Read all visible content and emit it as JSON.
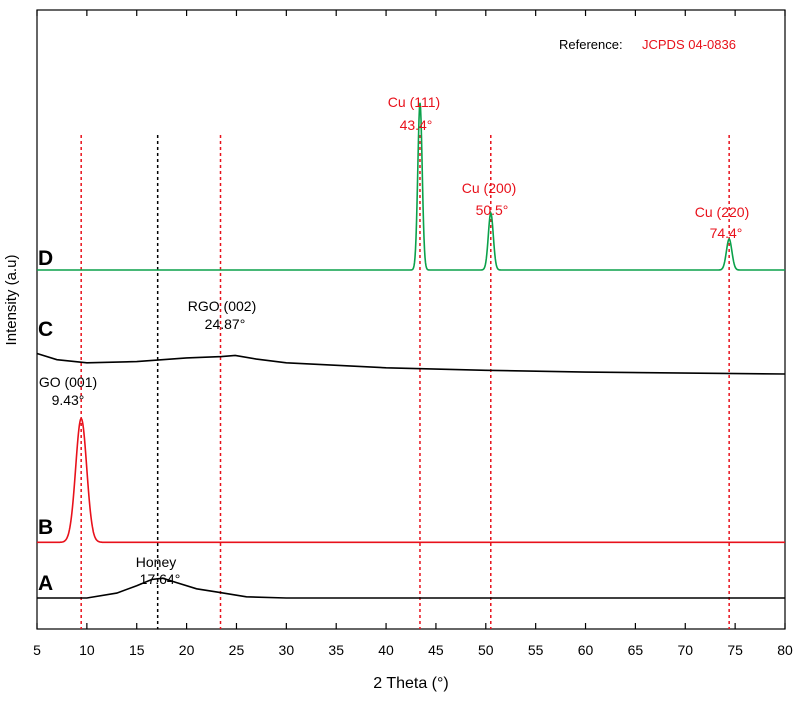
{
  "chart_data": {
    "type": "line",
    "xlabel": "2 Theta (°)",
    "ylabel": "Intensity (a.u)",
    "xlim": [
      5,
      80
    ],
    "xticks": [
      5,
      10,
      15,
      20,
      25,
      30,
      35,
      40,
      45,
      50,
      55,
      60,
      65,
      70,
      75,
      80
    ],
    "grid": false,
    "reference": {
      "label": "Reference:",
      "value": "JCPDS 04-0836"
    },
    "colors": {
      "A": "#000000",
      "B": "#e8111b",
      "C": "#000000",
      "D": "#0aa14a",
      "ref_line": "#e8111b",
      "annot_red": "#e8111b"
    },
    "series": [
      {
        "name": "A",
        "baseline": 0.05,
        "points": [
          [
            5,
            0.05
          ],
          [
            10,
            0.05
          ],
          [
            13,
            0.058
          ],
          [
            15,
            0.07
          ],
          [
            16.5,
            0.08
          ],
          [
            17.6,
            0.082
          ],
          [
            19,
            0.075
          ],
          [
            21,
            0.065
          ],
          [
            23,
            0.06
          ],
          [
            26,
            0.052
          ],
          [
            30,
            0.05
          ],
          [
            80,
            0.05
          ]
        ]
      },
      {
        "name": "B",
        "baseline": 0.14,
        "peaks": [
          {
            "x": 9.43,
            "height": 0.2,
            "width": 0.55
          }
        ]
      },
      {
        "name": "C",
        "baseline": 0.43,
        "points": [
          [
            5,
            0.445
          ],
          [
            7,
            0.435
          ],
          [
            10,
            0.43
          ],
          [
            15,
            0.432
          ],
          [
            20,
            0.438
          ],
          [
            23.5,
            0.44
          ],
          [
            24.87,
            0.442
          ],
          [
            27,
            0.436
          ],
          [
            30,
            0.43
          ],
          [
            40,
            0.422
          ],
          [
            50,
            0.418
          ],
          [
            60,
            0.415
          ],
          [
            80,
            0.412
          ]
        ]
      },
      {
        "name": "D",
        "baseline": 0.58,
        "peaks": [
          {
            "x": 43.4,
            "height": 0.27,
            "width": 0.22
          },
          {
            "x": 50.5,
            "height": 0.092,
            "width": 0.25
          },
          {
            "x": 74.4,
            "height": 0.05,
            "width": 0.28
          }
        ]
      }
    ],
    "reference_lines": [
      {
        "x": 9.43,
        "color": "red"
      },
      {
        "x": 17.1,
        "color": "black"
      },
      {
        "x": 23.4,
        "color": "red"
      },
      {
        "x": 43.4,
        "color": "red"
      },
      {
        "x": 50.5,
        "color": "red"
      },
      {
        "x": 74.4,
        "color": "red"
      }
    ],
    "annotations": [
      {
        "id": "honey",
        "name": "Honey",
        "value": "17.64°",
        "x": 17.64,
        "color": "black"
      },
      {
        "id": "go",
        "name": "GO (001)",
        "value": "9.43°",
        "x": 9.43,
        "color": "black"
      },
      {
        "id": "rgo",
        "name": "RGO (002)",
        "value": "24.87°",
        "x": 24.87,
        "color": "black"
      },
      {
        "id": "cu111",
        "name": "Cu (111)",
        "value": "43.4°",
        "x": 43.4,
        "color": "red"
      },
      {
        "id": "cu200",
        "name": "Cu (200)",
        "value": "50.5°",
        "x": 50.5,
        "color": "red"
      },
      {
        "id": "cu220",
        "name": "Cu (220)",
        "value": "74.4°",
        "x": 74.4,
        "color": "red"
      }
    ]
  }
}
